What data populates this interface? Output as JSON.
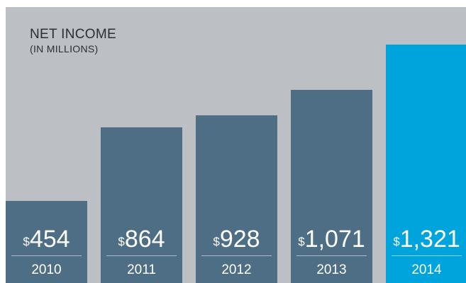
{
  "chart_data": {
    "type": "bar",
    "title": "NET INCOME",
    "subtitle": "(IN MILLIONS)",
    "currency_symbol": "$",
    "categories": [
      "2010",
      "2011",
      "2012",
      "2013",
      "2014"
    ],
    "values": [
      454,
      864,
      928,
      1071,
      1321
    ],
    "value_labels": [
      "454",
      "864",
      "928",
      "1,071",
      "1,321"
    ],
    "ylim": [
      0,
      1321
    ],
    "grid": false,
    "colors": {
      "background": "#bcbfc4",
      "bar": "#4e6e85",
      "highlight_bar": "#00a4dc",
      "title_text": "#2b2f33",
      "label_text": "#ffffff"
    },
    "highlight_index": 4
  }
}
